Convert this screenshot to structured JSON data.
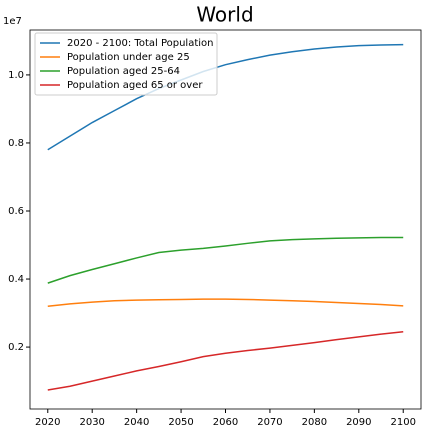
{
  "chart_data": {
    "type": "line",
    "title": "World",
    "y_offset_label": "1e7",
    "x": [
      2020,
      2025,
      2030,
      2035,
      2040,
      2045,
      2050,
      2055,
      2060,
      2065,
      2070,
      2075,
      2080,
      2085,
      2090,
      2095,
      2100
    ],
    "series": [
      {
        "name": "2020 - 2100: Total Population",
        "color": "#1f77b4",
        "values": [
          0.78,
          0.82,
          0.86,
          0.895,
          0.93,
          0.96,
          0.985,
          1.01,
          1.03,
          1.045,
          1.058,
          1.068,
          1.076,
          1.082,
          1.086,
          1.088,
          1.089
        ]
      },
      {
        "name": "Population under age 25",
        "color": "#ff7f0e",
        "values": [
          0.32,
          0.327,
          0.332,
          0.336,
          0.338,
          0.339,
          0.34,
          0.341,
          0.341,
          0.34,
          0.338,
          0.336,
          0.334,
          0.331,
          0.328,
          0.325,
          0.321
        ]
      },
      {
        "name": "Population aged 25-64",
        "color": "#2ca02c",
        "values": [
          0.388,
          0.41,
          0.428,
          0.445,
          0.462,
          0.478,
          0.485,
          0.49,
          0.497,
          0.505,
          0.512,
          0.516,
          0.518,
          0.52,
          0.521,
          0.522,
          0.522
        ]
      },
      {
        "name": "Population aged 65 or over",
        "color": "#d62728",
        "values": [
          0.074,
          0.085,
          0.1,
          0.115,
          0.13,
          0.143,
          0.157,
          0.172,
          0.182,
          0.19,
          0.197,
          0.205,
          0.213,
          0.222,
          0.23,
          0.238,
          0.245
        ]
      }
    ],
    "xlim": [
      2016,
      2104
    ],
    "xticks": [
      2020,
      2030,
      2040,
      2050,
      2060,
      2070,
      2080,
      2090,
      2100
    ],
    "ylim": [
      0.018,
      1.132
    ],
    "yticks": [
      0.2,
      0.4,
      0.6,
      0.8,
      {
        "value": 1.0,
        "label": "1.0"
      }
    ],
    "legend": "upper left"
  }
}
